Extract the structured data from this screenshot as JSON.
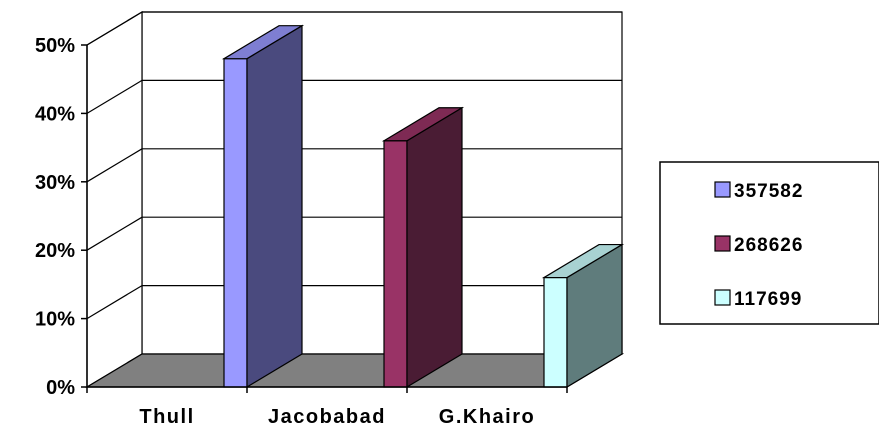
{
  "chart_data": {
    "type": "bar",
    "style": "3d-column",
    "categories": [
      "Thull",
      "Jacobabad",
      "G.Khairo"
    ],
    "series": [
      {
        "name": "357582",
        "category": "Thull",
        "value": 48,
        "color": "#9999ff",
        "side_color": "#4a4a7e",
        "top_color": "#7e7ed2"
      },
      {
        "name": "268626",
        "category": "Jacobabad",
        "value": 36,
        "color": "#993366",
        "side_color": "#4a1c34",
        "top_color": "#7e2a54"
      },
      {
        "name": "117699",
        "category": "G.Khairo",
        "value": 16,
        "color": "#ccffff",
        "side_color": "#5f7c7c",
        "top_color": "#a8d2d2"
      }
    ],
    "y_ticks": [
      "0%",
      "10%",
      "20%",
      "30%",
      "40%",
      "50%"
    ],
    "ylim": [
      0,
      50
    ],
    "y_unit": "%",
    "grid": true,
    "floor_color": "#808080",
    "legend_position": "right"
  }
}
